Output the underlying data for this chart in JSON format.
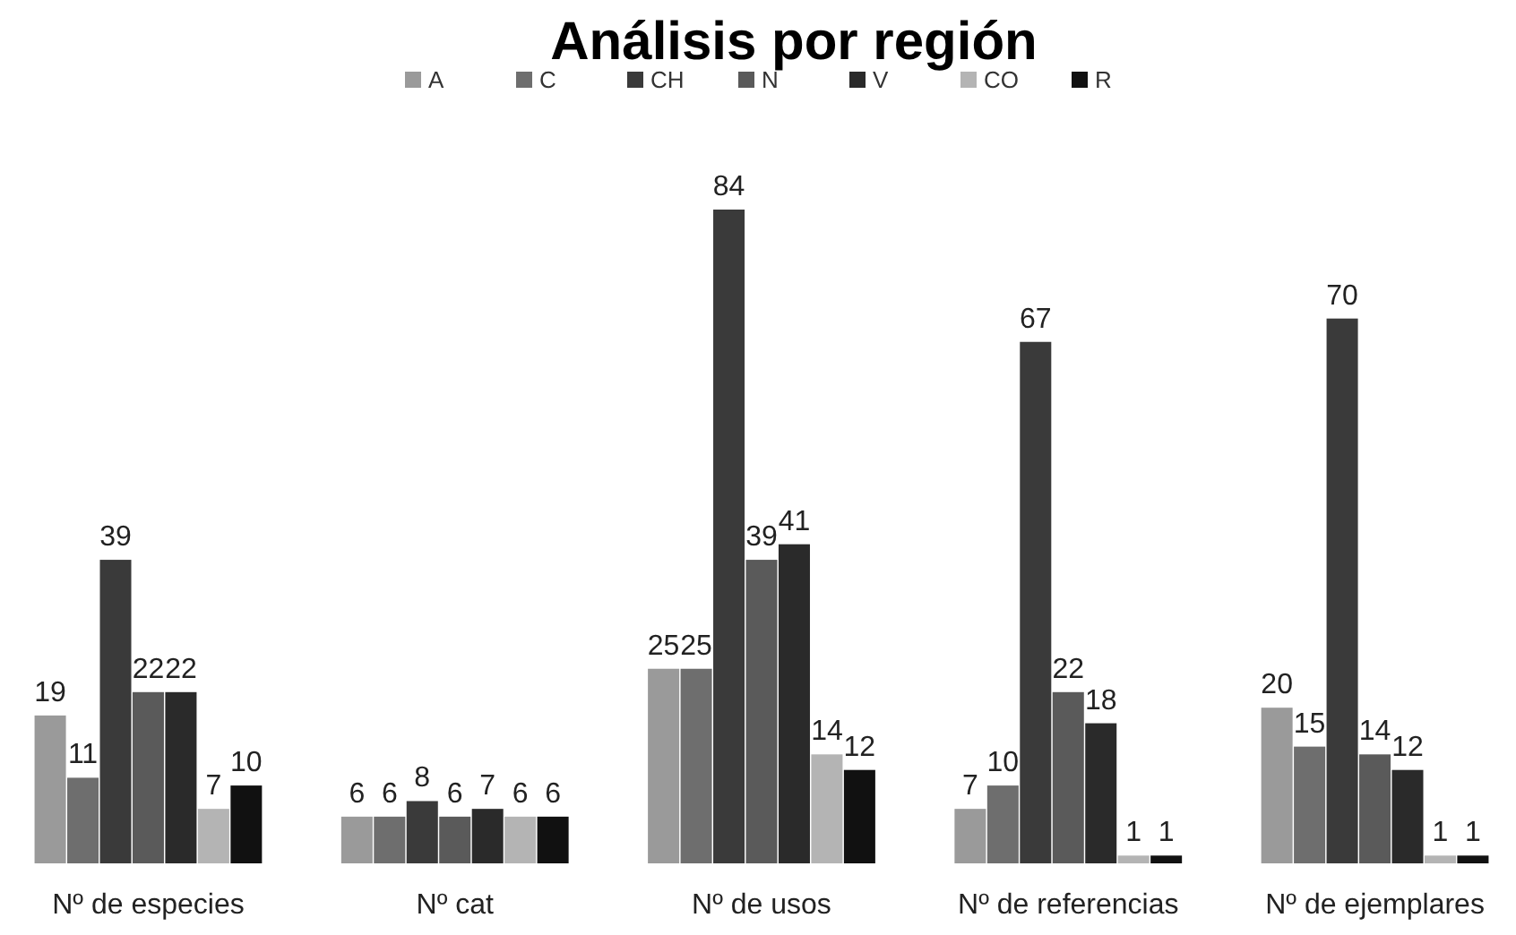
{
  "chart_data": {
    "type": "bar",
    "title": "Análisis por región",
    "categories": [
      "Nº de especies",
      "Nº cat",
      "Nº de usos",
      "Nº de referencias",
      "Nº de ejemplares"
    ],
    "data_labels": true,
    "legend": "top",
    "series": [
      {
        "name": "A",
        "color": "#9a9a9a",
        "values": [
          19,
          6,
          25,
          7,
          20
        ]
      },
      {
        "name": "C",
        "color": "#6e6e6e",
        "values": [
          11,
          6,
          25,
          10,
          15
        ]
      },
      {
        "name": "CH",
        "color": "#3a3a3a",
        "values": [
          39,
          8,
          84,
          67,
          70
        ]
      },
      {
        "name": "N",
        "color": "#5a5a5a",
        "values": [
          22,
          6,
          39,
          22,
          14
        ]
      },
      {
        "name": "V",
        "color": "#2a2a2a",
        "values": [
          22,
          7,
          41,
          18,
          12
        ]
      },
      {
        "name": "CO",
        "color": "#b4b4b4",
        "values": [
          7,
          6,
          14,
          1,
          1
        ]
      },
      {
        "name": "R",
        "color": "#111111",
        "values": [
          10,
          6,
          12,
          1,
          1
        ]
      }
    ]
  }
}
